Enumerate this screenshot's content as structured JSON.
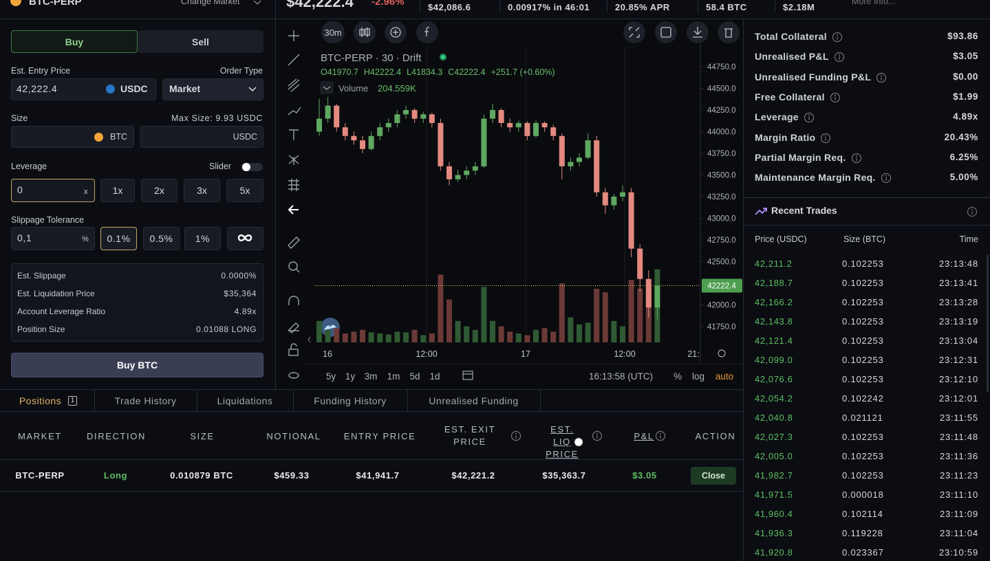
{
  "top_bar": {
    "market": "BTC-PERP",
    "change_market": "Change Market",
    "price": "$42,222.4",
    "change": "-2.96%",
    "stats": [
      "$42,086.6",
      "0.00917% in 46:01",
      "20.85% APR",
      "58.4 BTC",
      "$2.18M"
    ],
    "more_info": "More Info..."
  },
  "order_form": {
    "tabs": [
      "Buy",
      "Sell"
    ],
    "entry_price_label": "Est. Entry Price",
    "order_type_label": "Order Type",
    "entry_price": "42,222.4",
    "entry_currency": "USDC",
    "order_type": "Market",
    "size_label": "Size",
    "max_size": "Max Size: 9.93 USDC",
    "size_btc_unit": "BTC",
    "size_usdc_unit": "USDC",
    "leverage_label": "Leverage",
    "slider_label": "Slider",
    "leverage_value": "0",
    "leverage_suffix": "x",
    "leverage_options": [
      "1x",
      "2x",
      "3x",
      "5x"
    ],
    "slippage_label": "Slippage Tolerance",
    "slippage_value": "0,1",
    "slippage_suffix": "%",
    "slippage_options": [
      "0.1%",
      "0.5%",
      "1%"
    ],
    "summary": [
      {
        "label": "Est. Slippage",
        "value": "0.0000%"
      },
      {
        "label": "Est. Liquidation Price",
        "value": "$35,364"
      },
      {
        "label": "Account Leverage Ratio",
        "value": "4.89x"
      },
      {
        "label": "Position Size",
        "value": "0.01088 LONG"
      }
    ],
    "submit": "Buy BTC"
  },
  "chart": {
    "type": "candlestick",
    "interval": "30m",
    "title": "BTC-PERP · 30 · Drift",
    "ohlc": [
      "O41970.7",
      "H42222.4",
      "L41834.3",
      "C42222.4"
    ],
    "ohlc_change": "+251.7 (+0.60%)",
    "volume_label": "Volume",
    "volume_value": "204.559K",
    "ylim": [
      41552,
      44980
    ],
    "yticks": [
      {
        "value": 44750,
        "label": "44750.0"
      },
      {
        "value": 44500,
        "label": "44500.0"
      },
      {
        "value": 44250,
        "label": "44250.0"
      },
      {
        "value": 44000,
        "label": "44000.0"
      },
      {
        "value": 43750,
        "label": "43750.0"
      },
      {
        "value": 43500,
        "label": "43500.0"
      },
      {
        "value": 43250,
        "label": "43250.0"
      },
      {
        "value": 43000,
        "label": "43000.0"
      },
      {
        "value": 42750,
        "label": "42750.0"
      },
      {
        "value": 42500,
        "label": "42500.0"
      },
      {
        "value": 42000,
        "label": "42000.0"
      },
      {
        "value": 41750,
        "label": "41750.0"
      }
    ],
    "last_price": {
      "value": 42222.4,
      "label": "42222.4"
    },
    "time_ticks": [
      "16",
      "12:00",
      "17",
      "12:00",
      "21:"
    ],
    "up_color": "#5fa862",
    "down_color": "#e38a80",
    "candles": [
      [
        44000,
        44380,
        43950,
        44150
      ],
      [
        44150,
        44400,
        44100,
        44300
      ],
      [
        44300,
        44320,
        44000,
        44050
      ],
      [
        44050,
        44100,
        43900,
        43950
      ],
      [
        43950,
        44000,
        43850,
        43900
      ],
      [
        43900,
        43950,
        43750,
        43800
      ],
      [
        43800,
        44000,
        43780,
        43950
      ],
      [
        43950,
        44100,
        43900,
        44050
      ],
      [
        44050,
        44150,
        44000,
        44100
      ],
      [
        44100,
        44250,
        44050,
        44200
      ],
      [
        44200,
        44300,
        44150,
        44250
      ],
      [
        44250,
        44270,
        44100,
        44150
      ],
      [
        44150,
        44230,
        44100,
        44200
      ],
      [
        44200,
        44220,
        44050,
        44100
      ],
      [
        44100,
        44150,
        43550,
        43600
      ],
      [
        43600,
        43650,
        43380,
        43450
      ],
      [
        43450,
        43560,
        43420,
        43500
      ],
      [
        43500,
        43600,
        43450,
        43550
      ],
      [
        43550,
        43650,
        43500,
        43600
      ],
      [
        43600,
        44200,
        43580,
        44150
      ],
      [
        44150,
        44320,
        44100,
        44250
      ],
      [
        44250,
        44270,
        44050,
        44100
      ],
      [
        44100,
        44150,
        44000,
        44050
      ],
      [
        44050,
        44130,
        44000,
        44100
      ],
      [
        44100,
        44120,
        43900,
        43950
      ],
      [
        43950,
        44130,
        43930,
        44100
      ],
      [
        44100,
        44120,
        44000,
        44050
      ],
      [
        44050,
        44080,
        43900,
        43950
      ],
      [
        43950,
        43980,
        43450,
        43600
      ],
      [
        43600,
        43700,
        43550,
        43650
      ],
      [
        43650,
        43750,
        43600,
        43700
      ],
      [
        43700,
        43980,
        43680,
        43900
      ],
      [
        43900,
        43950,
        43250,
        43300
      ],
      [
        43300,
        43350,
        43050,
        43150
      ],
      [
        43150,
        43280,
        43100,
        43250
      ],
      [
        43250,
        43380,
        43200,
        43300
      ],
      [
        43300,
        43350,
        42550,
        42650
      ],
      [
        42650,
        42700,
        42150,
        42300
      ],
      [
        42300,
        42400,
        41850,
        41970.7
      ],
      [
        41970.7,
        42222.4,
        41834.3,
        42222.4
      ]
    ],
    "volume": [
      60,
      35,
      40,
      25,
      30,
      35,
      28,
      25,
      22,
      30,
      28,
      35,
      20,
      25,
      190,
      120,
      60,
      45,
      35,
      155,
      60,
      45,
      30,
      25,
      20,
      35,
      40,
      30,
      165,
      70,
      50,
      55,
      150,
      140,
      60,
      45,
      175,
      150,
      160,
      204.559
    ],
    "ranges": [
      "5y",
      "1y",
      "3m",
      "1m",
      "5d",
      "1d"
    ],
    "clock": "16:13:58 (UTC)",
    "scale_options": [
      "%",
      "log",
      "auto"
    ]
  },
  "account": {
    "stats": [
      {
        "label": "Total Collateral",
        "value": "$93.86"
      },
      {
        "label": "Unrealised P&L",
        "value": "$3.05"
      },
      {
        "label": "Unrealised Funding P&L",
        "value": "$0.00"
      },
      {
        "label": "Free Collateral",
        "value": "$1.99"
      },
      {
        "label": "Leverage",
        "value": "4.89x"
      },
      {
        "label": "Margin Ratio",
        "value": "20.43%"
      },
      {
        "label": "Partial Margin Req.",
        "value": "6.25%"
      },
      {
        "label": "Maintenance Margin Req.",
        "value": "5.00%"
      }
    ]
  },
  "recent_trades": {
    "title": "Recent Trades",
    "columns": [
      "Price (USDC)",
      "Size (BTC)",
      "Time"
    ],
    "rows": [
      [
        "42,211.2",
        "0.102253",
        "23:13:48"
      ],
      [
        "42,188.7",
        "0.102253",
        "23:13:41"
      ],
      [
        "42,166.2",
        "0.102253",
        "23:13:28"
      ],
      [
        "42,143.8",
        "0.102253",
        "23:13:19"
      ],
      [
        "42,121.4",
        "0.102253",
        "23:13:04"
      ],
      [
        "42,099.0",
        "0.102253",
        "23:12:31"
      ],
      [
        "42,076.6",
        "0.102253",
        "23:12:10"
      ],
      [
        "42,054.2",
        "0.102242",
        "23:12:01"
      ],
      [
        "42,040.8",
        "0.021121",
        "23:11:55"
      ],
      [
        "42,027.3",
        "0.102253",
        "23:11:48"
      ],
      [
        "42,005.0",
        "0.102253",
        "23:11:36"
      ],
      [
        "41,982.7",
        "0.102253",
        "23:11:23"
      ],
      [
        "41,971.5",
        "0.000018",
        "23:11:10"
      ],
      [
        "41,960.4",
        "0.102114",
        "23:11:09"
      ],
      [
        "41,936.3",
        "0.119228",
        "23:11:04"
      ],
      [
        "41,920.8",
        "0.023367",
        "23:10:59"
      ]
    ]
  },
  "positions": {
    "tabs": [
      "Positions",
      "Trade History",
      "Liquidations",
      "Funding History",
      "Unrealised Funding"
    ],
    "count": "1",
    "columns": [
      "MARKET",
      "DIRECTION",
      "SIZE",
      "NOTIONAL",
      "ENTRY PRICE",
      "EST. EXIT PRICE",
      "EST. LIQ PRICE",
      "P&L",
      "ACTION"
    ],
    "rows": [
      [
        "BTC-PERP",
        "Long",
        "0.010879 BTC",
        "$459.33",
        "$41,941.7",
        "$42,221.2",
        "$35,363.7",
        "$3.05",
        "Close"
      ]
    ]
  }
}
